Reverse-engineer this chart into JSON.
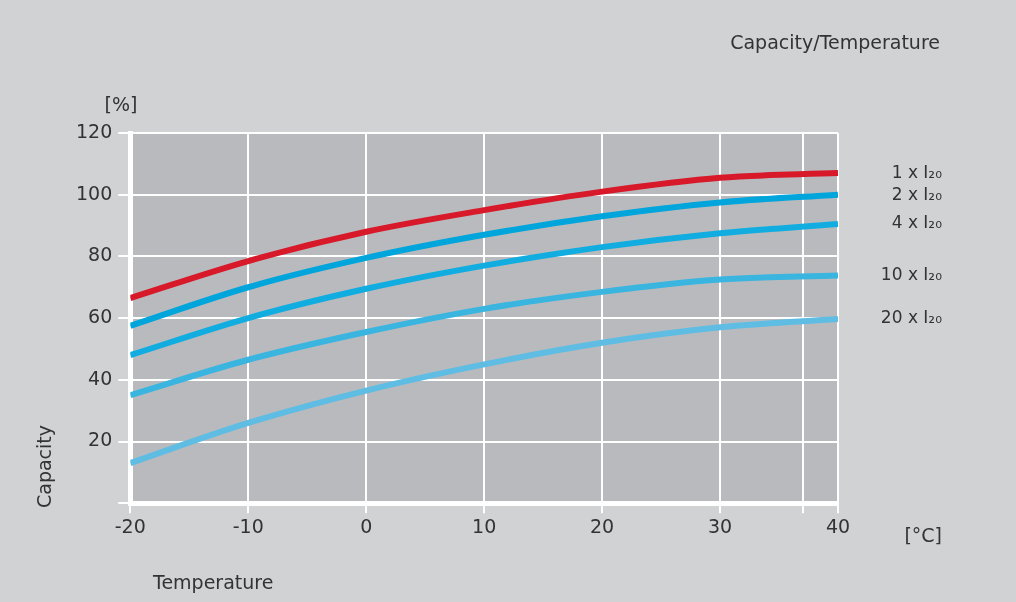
{
  "chart_data": {
    "type": "line",
    "title": "Capacity/Temperature",
    "xlabel": "Temperature",
    "ylabel": "Capacity",
    "annotations": [
      "[%]",
      "[°C]"
    ],
    "x": [
      -20,
      -10,
      0,
      10,
      20,
      30,
      40
    ],
    "series": [
      {
        "name": "1 x I₂₀",
        "color": "#d7192a",
        "values": [
          66.5,
          78.5,
          88,
          95,
          101,
          105.5,
          107
        ]
      },
      {
        "name": "2 x I₂₀",
        "color": "#00a5dc",
        "values": [
          57.5,
          70,
          79.5,
          87,
          93,
          97.5,
          100
        ]
      },
      {
        "name": "4 x I₂₀",
        "color": "#12ade0",
        "values": [
          48,
          60,
          69.5,
          77,
          83,
          87.5,
          90.5
        ]
      },
      {
        "name": "10 x I₂₀",
        "color": "#3ab5e0",
        "values": [
          35,
          46.5,
          55.5,
          63,
          68.5,
          72.5,
          73.8
        ]
      },
      {
        "name": "20 x I₂₀",
        "color": "#5fbde3",
        "values": [
          13,
          26,
          36.5,
          45,
          52,
          57,
          59.7
        ]
      }
    ],
    "xlim": [
      -20,
      40
    ],
    "xticks": [
      -20,
      -10,
      0,
      10,
      20,
      30,
      {
        "value": 37,
        "label": null
      },
      40
    ],
    "ylim": [
      0,
      120
    ],
    "yticks": [
      {
        "value": 0,
        "label": null
      },
      20,
      40,
      60,
      80,
      100,
      120
    ],
    "grid": true,
    "marker": "none",
    "line_style": "solid",
    "legend": false
  }
}
